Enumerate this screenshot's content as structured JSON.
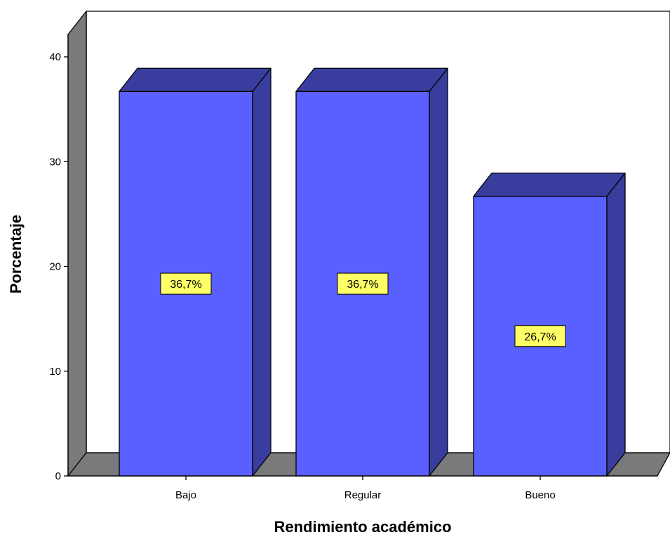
{
  "chart_data": {
    "type": "bar",
    "style": "3d",
    "categories": [
      "Bajo",
      "Regular",
      "Bueno"
    ],
    "values": [
      36.7,
      36.7,
      26.7
    ],
    "data_labels": [
      "36,7%",
      "36,7%",
      "26,7%"
    ],
    "xlabel": "Rendimiento académico",
    "ylabel": "Porcentaje",
    "ylim": [
      0,
      40
    ],
    "yticks": [
      "0",
      "10",
      "20",
      "30",
      "40"
    ],
    "ytick_values": [
      0,
      10,
      20,
      30,
      40
    ],
    "grid": false,
    "legend": "none",
    "colors": {
      "bar_front": "#5a5fff",
      "bar_side": "#393e9e",
      "bar_top": "#393e9e",
      "wall": "#7a7a7a",
      "floor": "#7a7a7a",
      "label_bg": "#ffff66"
    }
  }
}
